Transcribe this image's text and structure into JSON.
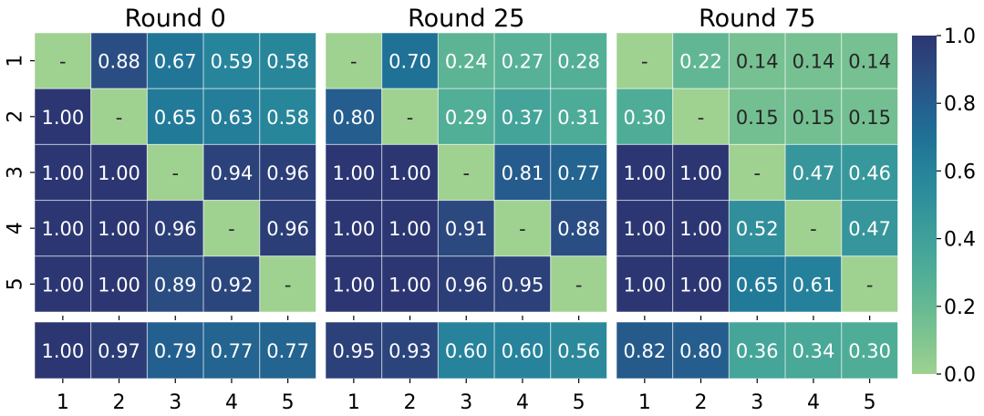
{
  "chart_data": {
    "type": "heatmap",
    "row_labels": [
      "1",
      "2",
      "3",
      "4",
      "5"
    ],
    "col_labels": [
      "1",
      "2",
      "3",
      "4",
      "5"
    ],
    "value_range": [
      0.0,
      1.0
    ],
    "colormap": "crest",
    "grid": true,
    "panels": [
      {
        "title": "Round 0",
        "matrix": [
          [
            null,
            0.88,
            0.67,
            0.59,
            0.58
          ],
          [
            1.0,
            null,
            0.65,
            0.63,
            0.58
          ],
          [
            1.0,
            1.0,
            null,
            0.94,
            0.96
          ],
          [
            1.0,
            1.0,
            0.96,
            null,
            0.96
          ],
          [
            1.0,
            1.0,
            0.89,
            0.92,
            null
          ]
        ],
        "summary": [
          1.0,
          0.97,
          0.79,
          0.77,
          0.77
        ]
      },
      {
        "title": "Round 25",
        "matrix": [
          [
            null,
            0.7,
            0.24,
            0.27,
            0.28
          ],
          [
            0.8,
            null,
            0.29,
            0.37,
            0.31
          ],
          [
            1.0,
            1.0,
            null,
            0.81,
            0.77
          ],
          [
            1.0,
            1.0,
            0.91,
            null,
            0.88
          ],
          [
            1.0,
            1.0,
            0.96,
            0.95,
            null
          ]
        ],
        "summary": [
          0.95,
          0.93,
          0.6,
          0.6,
          0.56
        ]
      },
      {
        "title": "Round 75",
        "matrix": [
          [
            null,
            0.22,
            0.14,
            0.14,
            0.14
          ],
          [
            0.3,
            null,
            0.15,
            0.15,
            0.15
          ],
          [
            1.0,
            1.0,
            null,
            0.47,
            0.46
          ],
          [
            1.0,
            1.0,
            0.52,
            null,
            0.47
          ],
          [
            1.0,
            1.0,
            0.65,
            0.61,
            null
          ]
        ],
        "summary": [
          0.82,
          0.8,
          0.36,
          0.34,
          0.3
        ]
      }
    ],
    "colorbar": {
      "ticks": [
        0.0,
        0.2,
        0.4,
        0.6,
        0.8,
        1.0
      ],
      "tick_labels": [
        "0.0",
        "0.2",
        "0.4",
        "0.6",
        "0.8",
        "1.0"
      ]
    },
    "diagonal_label": "-",
    "colors": {
      "low": "#9fd190",
      "mid": "#3fa09a",
      "high": "#2c3672"
    }
  }
}
